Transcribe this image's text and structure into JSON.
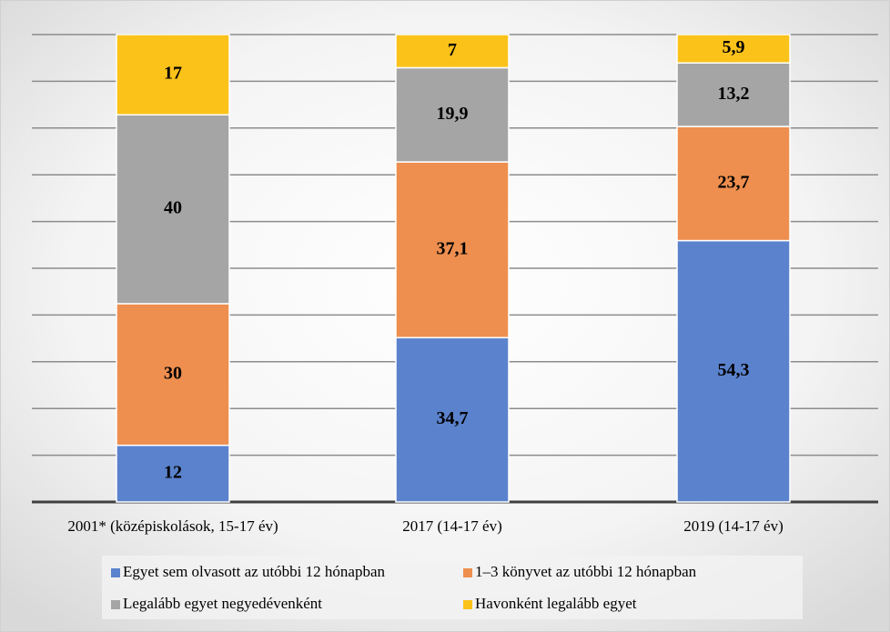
{
  "chart_data": {
    "type": "bar",
    "stacking": "percent",
    "categories": [
      "2001* (középiskolások, 15-17 év)",
      "2017 (14-17 év)",
      "2019 (14-17 év)"
    ],
    "series": [
      {
        "name": "Egyet sem olvasott az utóbbi 12 hónapban",
        "color": "#5b82cc",
        "values": [
          12,
          34.7,
          54.3
        ],
        "value_labels": [
          "12",
          "34,7",
          "54,3"
        ]
      },
      {
        "name": "1–3 könyvet az utóbbi 12 hónapban",
        "color": "#ee8f4f",
        "values": [
          30,
          37.1,
          23.7
        ],
        "value_labels": [
          "30",
          "37,1",
          "23,7"
        ]
      },
      {
        "name": "Legalább egyet negyedévenként",
        "color": "#a5a5a5",
        "values": [
          40,
          19.9,
          13.2
        ],
        "value_labels": [
          "40",
          "19,9",
          "13,2"
        ]
      },
      {
        "name": "Havonként legalább egyet",
        "color": "#fbc21a",
        "values": [
          17,
          7,
          5.9
        ],
        "value_labels": [
          "17",
          "7",
          "5,9"
        ]
      }
    ],
    "ylim": [
      0,
      100
    ],
    "yticks": [
      0,
      10,
      20,
      30,
      40,
      50,
      60,
      70,
      80,
      90,
      100
    ],
    "grid": true
  }
}
